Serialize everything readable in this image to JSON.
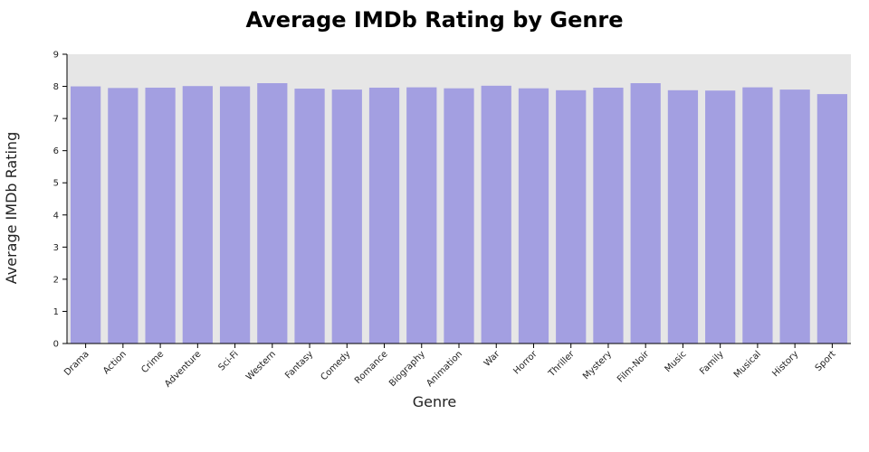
{
  "chart_data": {
    "type": "bar",
    "title": "Average IMDb Rating by Genre",
    "xlabel": "Genre",
    "ylabel": "Average IMDb Rating",
    "categories": [
      "Drama",
      "Action",
      "Crime",
      "Adventure",
      "Sci-Fi",
      "Western",
      "Fantasy",
      "Comedy",
      "Romance",
      "Biography",
      "Animation",
      "War",
      "Horror",
      "Thriller",
      "Mystery",
      "Film-Noir",
      "Music",
      "Family",
      "Musical",
      "History",
      "Sport"
    ],
    "values": [
      8.0,
      7.95,
      7.96,
      8.01,
      8.0,
      8.1,
      7.93,
      7.9,
      7.96,
      7.97,
      7.94,
      8.02,
      7.94,
      7.88,
      7.96,
      8.1,
      7.88,
      7.87,
      7.97,
      7.9,
      7.76
    ],
    "ylim": [
      0,
      9
    ],
    "yticks": [
      "0",
      "1",
      "2",
      "3",
      "4",
      "5",
      "6",
      "7",
      "8",
      "9"
    ],
    "grid": false,
    "legend": "none",
    "colors": {
      "bar": "#a39fe1",
      "plot_background": "#e6e6e6",
      "axis": "#000000",
      "text": "#222222"
    }
  }
}
